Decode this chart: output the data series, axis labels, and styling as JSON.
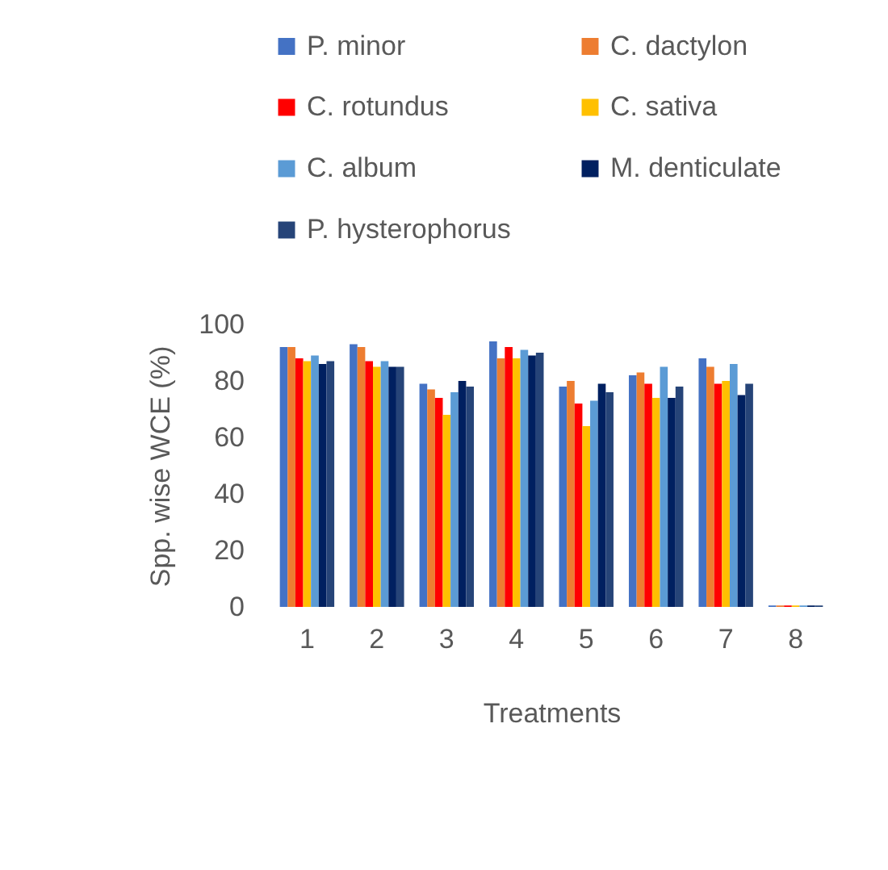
{
  "chart_data": {
    "type": "bar",
    "xlabel": "Treatments",
    "ylabel": "Spp. wise WCE (%)",
    "categories": [
      "1",
      "2",
      "3",
      "4",
      "5",
      "6",
      "7",
      "8"
    ],
    "series": [
      {
        "name": "P.  minor",
        "color": "#4472c4",
        "values": [
          92,
          93,
          79,
          94,
          78,
          82,
          88,
          0.5
        ]
      },
      {
        "name": "C. dactylon",
        "color": "#ed7d31",
        "values": [
          92,
          92,
          77,
          88,
          80,
          83,
          85,
          0.5
        ]
      },
      {
        "name": "C. rotundus",
        "color": "#ff0000",
        "values": [
          88,
          87,
          74,
          92,
          72,
          79,
          79,
          0.5
        ]
      },
      {
        "name": "C. sativa",
        "color": "#ffc000",
        "values": [
          87,
          85,
          68,
          88,
          64,
          74,
          80,
          0.5
        ]
      },
      {
        "name": "C. album",
        "color": "#5b9bd5",
        "values": [
          89,
          87,
          76,
          91,
          73,
          85,
          86,
          0.5
        ]
      },
      {
        "name": "M. denticulate",
        "color": "#002060",
        "values": [
          86,
          85,
          80,
          89,
          79,
          74,
          75,
          0.5
        ]
      },
      {
        "name": "P. hysterophorus",
        "color": "#264478",
        "values": [
          87,
          85,
          78,
          90,
          76,
          78,
          79,
          0.5
        ]
      }
    ],
    "ylim": [
      0,
      100
    ],
    "yticks": [
      0,
      20,
      40,
      60,
      80,
      100
    ],
    "grid": false,
    "legend": "top"
  }
}
